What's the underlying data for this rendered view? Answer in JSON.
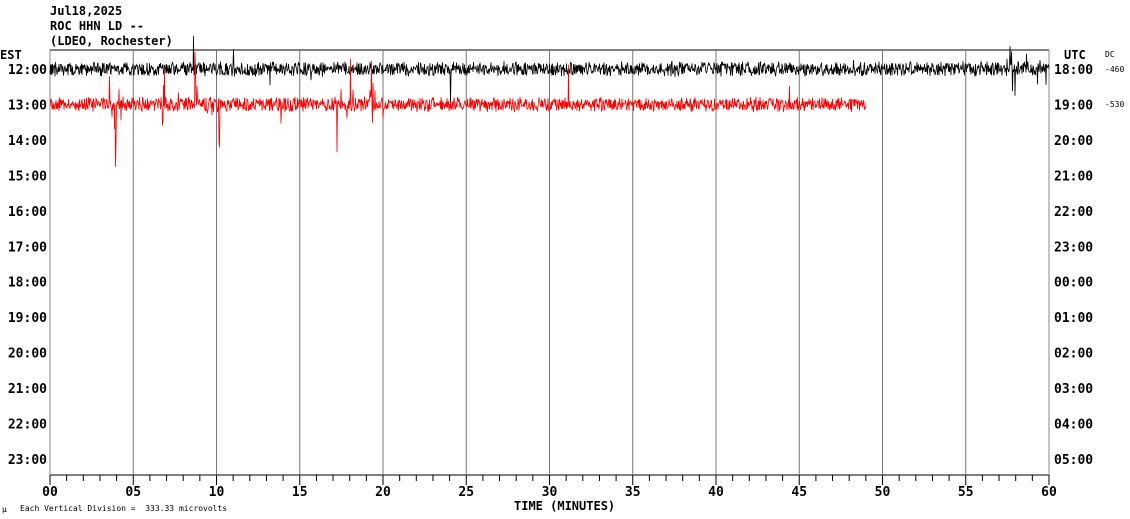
{
  "header": {
    "date": "Jul18,2025",
    "station": "ROC HHN LD --",
    "network": "(LDEO, Rochester)"
  },
  "left_zone": "EST",
  "right_zone": "UTC",
  "dc_label": "DC",
  "footer": {
    "mark": "μ",
    "scale": "Each Vertical Division =  333.33 microvolts"
  },
  "chart_data": {
    "type": "line",
    "xlabel": "TIME (MINUTES)",
    "xlim": [
      0,
      60
    ],
    "x_ticks": [
      "00",
      "05",
      "10",
      "15",
      "20",
      "25",
      "30",
      "35",
      "40",
      "45",
      "50",
      "55",
      "60"
    ],
    "rows_est": [
      "12:00",
      "13:00",
      "14:00",
      "15:00",
      "16:00",
      "17:00",
      "18:00",
      "19:00",
      "20:00",
      "21:00",
      "22:00",
      "23:00"
    ],
    "rows_utc": [
      "18:00",
      "19:00",
      "20:00",
      "21:00",
      "22:00",
      "23:00",
      "00:00",
      "01:00",
      "02:00",
      "03:00",
      "04:00",
      "05:00"
    ],
    "dc_offsets": [
      "-460",
      "-530"
    ],
    "series": [
      {
        "row": "12:00",
        "color": "#000000",
        "end_minute": 60,
        "bursts": [
          [
            57.3,
            59.8
          ]
        ]
      },
      {
        "row": "13:00",
        "color": "#ff0000",
        "end_minute": 49,
        "bursts": [
          [
            3.5,
            4.5
          ],
          [
            6,
            7
          ],
          [
            8.5,
            10.2
          ],
          [
            17,
            20
          ]
        ]
      }
    ],
    "grid": true
  }
}
